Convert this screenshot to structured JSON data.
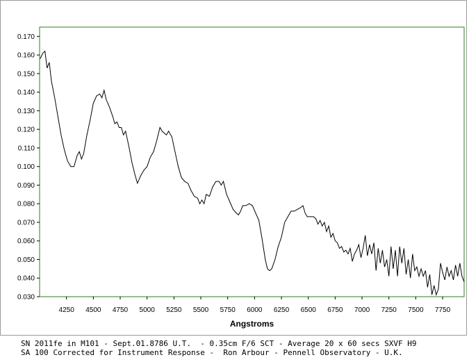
{
  "chart_data": {
    "type": "line",
    "title": "",
    "xlabel": "Angstroms",
    "ylabel": "",
    "xlim": [
      4000,
      7950
    ],
    "ylim": [
      0.03,
      0.175
    ],
    "x_ticks": [
      4250,
      4500,
      4750,
      5000,
      5250,
      5500,
      5750,
      6000,
      6250,
      6500,
      6750,
      7000,
      7250,
      7500,
      7750
    ],
    "y_ticks": [
      "0.030",
      "0.040",
      "0.050",
      "0.060",
      "0.070",
      "0.080",
      "0.090",
      "0.100",
      "0.110",
      "0.120",
      "0.130",
      "0.140",
      "0.150",
      "0.160",
      "0.170"
    ],
    "grid": false,
    "legend": "none",
    "plot_border_color": "#2e7d1e",
    "line_color": "#000000",
    "series": [
      {
        "points": [
          [
            4005,
            0.158
          ],
          [
            4030,
            0.161
          ],
          [
            4050,
            0.162
          ],
          [
            4070,
            0.153
          ],
          [
            4090,
            0.156
          ],
          [
            4110,
            0.146
          ],
          [
            4140,
            0.137
          ],
          [
            4170,
            0.127
          ],
          [
            4200,
            0.117
          ],
          [
            4230,
            0.109
          ],
          [
            4260,
            0.103
          ],
          [
            4290,
            0.1
          ],
          [
            4320,
            0.1
          ],
          [
            4350,
            0.106
          ],
          [
            4370,
            0.108
          ],
          [
            4390,
            0.104
          ],
          [
            4410,
            0.107
          ],
          [
            4440,
            0.117
          ],
          [
            4470,
            0.125
          ],
          [
            4500,
            0.134
          ],
          [
            4530,
            0.138
          ],
          [
            4560,
            0.139
          ],
          [
            4580,
            0.137
          ],
          [
            4600,
            0.141
          ],
          [
            4620,
            0.136
          ],
          [
            4650,
            0.132
          ],
          [
            4680,
            0.127
          ],
          [
            4700,
            0.123
          ],
          [
            4720,
            0.124
          ],
          [
            4740,
            0.121
          ],
          [
            4760,
            0.121
          ],
          [
            4780,
            0.117
          ],
          [
            4800,
            0.119
          ],
          [
            4830,
            0.111
          ],
          [
            4860,
            0.102
          ],
          [
            4890,
            0.095
          ],
          [
            4910,
            0.091
          ],
          [
            4940,
            0.095
          ],
          [
            4970,
            0.098
          ],
          [
            5000,
            0.1
          ],
          [
            5030,
            0.105
          ],
          [
            5060,
            0.108
          ],
          [
            5090,
            0.114
          ],
          [
            5120,
            0.121
          ],
          [
            5140,
            0.119
          ],
          [
            5160,
            0.118
          ],
          [
            5180,
            0.117
          ],
          [
            5200,
            0.119
          ],
          [
            5230,
            0.116
          ],
          [
            5260,
            0.108
          ],
          [
            5290,
            0.1
          ],
          [
            5320,
            0.094
          ],
          [
            5350,
            0.092
          ],
          [
            5380,
            0.091
          ],
          [
            5410,
            0.087
          ],
          [
            5440,
            0.084
          ],
          [
            5470,
            0.083
          ],
          [
            5490,
            0.08
          ],
          [
            5510,
            0.082
          ],
          [
            5530,
            0.08
          ],
          [
            5550,
            0.085
          ],
          [
            5580,
            0.084
          ],
          [
            5610,
            0.089
          ],
          [
            5640,
            0.092
          ],
          [
            5670,
            0.092
          ],
          [
            5690,
            0.09
          ],
          [
            5710,
            0.092
          ],
          [
            5740,
            0.085
          ],
          [
            5770,
            0.081
          ],
          [
            5800,
            0.077
          ],
          [
            5830,
            0.075
          ],
          [
            5850,
            0.074
          ],
          [
            5870,
            0.076
          ],
          [
            5890,
            0.079
          ],
          [
            5920,
            0.079
          ],
          [
            5950,
            0.08
          ],
          [
            5980,
            0.079
          ],
          [
            6010,
            0.075
          ],
          [
            6040,
            0.071
          ],
          [
            6070,
            0.061
          ],
          [
            6100,
            0.05
          ],
          [
            6120,
            0.045
          ],
          [
            6140,
            0.044
          ],
          [
            6160,
            0.045
          ],
          [
            6190,
            0.05
          ],
          [
            6220,
            0.057
          ],
          [
            6250,
            0.062
          ],
          [
            6280,
            0.07
          ],
          [
            6310,
            0.073
          ],
          [
            6340,
            0.076
          ],
          [
            6370,
            0.076
          ],
          [
            6400,
            0.077
          ],
          [
            6430,
            0.078
          ],
          [
            6450,
            0.079
          ],
          [
            6470,
            0.075
          ],
          [
            6490,
            0.073
          ],
          [
            6520,
            0.073
          ],
          [
            6550,
            0.073
          ],
          [
            6570,
            0.072
          ],
          [
            6590,
            0.069
          ],
          [
            6610,
            0.071
          ],
          [
            6630,
            0.068
          ],
          [
            6650,
            0.07
          ],
          [
            6670,
            0.065
          ],
          [
            6690,
            0.068
          ],
          [
            6710,
            0.062
          ],
          [
            6730,
            0.064
          ],
          [
            6750,
            0.06
          ],
          [
            6770,
            0.059
          ],
          [
            6790,
            0.056
          ],
          [
            6810,
            0.057
          ],
          [
            6830,
            0.054
          ],
          [
            6850,
            0.055
          ],
          [
            6870,
            0.053
          ],
          [
            6890,
            0.056
          ],
          [
            6910,
            0.049
          ],
          [
            6930,
            0.053
          ],
          [
            6950,
            0.055
          ],
          [
            6970,
            0.058
          ],
          [
            6990,
            0.051
          ],
          [
            7010,
            0.056
          ],
          [
            7030,
            0.063
          ],
          [
            7050,
            0.052
          ],
          [
            7070,
            0.058
          ],
          [
            7090,
            0.053
          ],
          [
            7110,
            0.059
          ],
          [
            7130,
            0.044
          ],
          [
            7150,
            0.056
          ],
          [
            7170,
            0.048
          ],
          [
            7190,
            0.055
          ],
          [
            7210,
            0.046
          ],
          [
            7230,
            0.05
          ],
          [
            7250,
            0.041
          ],
          [
            7270,
            0.057
          ],
          [
            7290,
            0.045
          ],
          [
            7310,
            0.055
          ],
          [
            7330,
            0.041
          ],
          [
            7350,
            0.057
          ],
          [
            7370,
            0.048
          ],
          [
            7390,
            0.056
          ],
          [
            7410,
            0.042
          ],
          [
            7430,
            0.05
          ],
          [
            7450,
            0.04
          ],
          [
            7470,
            0.053
          ],
          [
            7490,
            0.044
          ],
          [
            7510,
            0.046
          ],
          [
            7530,
            0.041
          ],
          [
            7550,
            0.045
          ],
          [
            7570,
            0.041
          ],
          [
            7590,
            0.044
          ],
          [
            7610,
            0.035
          ],
          [
            7630,
            0.042
          ],
          [
            7650,
            0.031
          ],
          [
            7670,
            0.036
          ],
          [
            7690,
            0.031
          ],
          [
            7710,
            0.034
          ],
          [
            7730,
            0.048
          ],
          [
            7750,
            0.043
          ],
          [
            7770,
            0.039
          ],
          [
            7790,
            0.046
          ],
          [
            7810,
            0.041
          ],
          [
            7830,
            0.044
          ],
          [
            7850,
            0.039
          ],
          [
            7870,
            0.047
          ],
          [
            7890,
            0.041
          ],
          [
            7910,
            0.048
          ],
          [
            7930,
            0.041
          ],
          [
            7950,
            0.038
          ]
        ]
      }
    ]
  },
  "caption": {
    "line1": "SN 2011fe in M101 - Sept.01.8786 U.T.  - 0.35cm F/6 SCT - Average 20 x 60 secs SXVF H9",
    "line2": "SA 100 Corrected for Instrument Response -  Ron Arbour - Pennell Observatory - U.K."
  }
}
